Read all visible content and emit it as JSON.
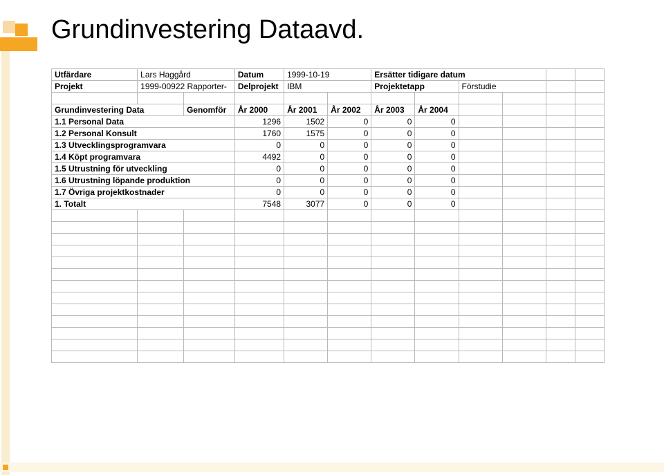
{
  "title": "Grundinvestering Dataavd.",
  "colors": {
    "accent": "#f5a623",
    "accent_light": "#f9d9a5",
    "accent_pale": "#f9eccf",
    "footer_bg": "#fef6e4",
    "grid_border": "#b9b9b9"
  },
  "header": {
    "issuer_label": "Utfärdare",
    "issuer_name": "Lars Haggård",
    "date_label": "Datum",
    "date_value": "1999-10-19",
    "replace_label": "Ersätter tidigare datum",
    "project_label": "Projekt",
    "project_value": "1999-00922 Rapporter-",
    "subproject_label": "Delprojekt",
    "subproject_value": "IBM",
    "stage_label": "Projektetapp",
    "stage_value": "Förstudie"
  },
  "table": {
    "section_title": "Grundinvestering Data",
    "col_label": "Genomför",
    "years": [
      "År 2000",
      "År 2001",
      "År 2002",
      "År 2003",
      "År 2004"
    ],
    "rows": [
      {
        "label": "1.1 Personal Data",
        "values": [
          "1296",
          "1502",
          "0",
          "0",
          "0"
        ]
      },
      {
        "label": "1.2 Personal Konsult",
        "values": [
          "1760",
          "1575",
          "0",
          "0",
          "0"
        ]
      },
      {
        "label": "1.3 Utvecklingsprogramvara",
        "values": [
          "0",
          "0",
          "0",
          "0",
          "0"
        ]
      },
      {
        "label": "1.4 Köpt programvara",
        "values": [
          "4492",
          "0",
          "0",
          "0",
          "0"
        ]
      },
      {
        "label": "1.5 Utrustning för utveckling",
        "values": [
          "0",
          "0",
          "0",
          "0",
          "0"
        ]
      },
      {
        "label": "1.6 Utrustning löpande produktion",
        "values": [
          "0",
          "0",
          "0",
          "0",
          "0"
        ]
      },
      {
        "label": "1.7 Övriga projektkostnader",
        "values": [
          "0",
          "0",
          "0",
          "0",
          "0"
        ]
      }
    ],
    "total": {
      "label": "1.  Totalt",
      "values": [
        "7548",
        "3077",
        "0",
        "0",
        "0"
      ]
    }
  }
}
